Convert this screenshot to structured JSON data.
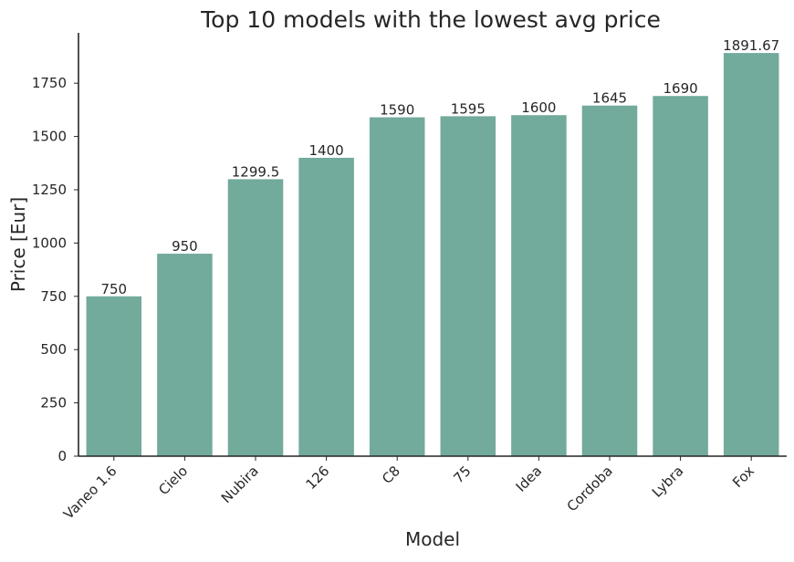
{
  "chart_data": {
    "type": "bar",
    "title": "Top 10 models with the lowest avg price",
    "xlabel": "Model",
    "ylabel": "Price [Eur]",
    "categories": [
      "Vaneo 1.6",
      "Cielo",
      "Nubira",
      "126",
      "C8",
      "75",
      "Idea",
      "Cordoba",
      "Lybra",
      "Fox"
    ],
    "values": [
      750,
      950,
      1299.5,
      1400,
      1590,
      1595,
      1600,
      1645,
      1690,
      1891.67
    ],
    "data_labels": [
      "750",
      "950",
      "1299.5",
      "1400",
      "1590",
      "1595",
      "1600",
      "1645",
      "1690",
      "1891.67"
    ],
    "yticks": [
      0,
      250,
      500,
      750,
      1000,
      1250,
      1500,
      1750
    ],
    "ylim": [
      0,
      1986.25
    ],
    "grid": false,
    "bar_color": "#72aa9c"
  }
}
